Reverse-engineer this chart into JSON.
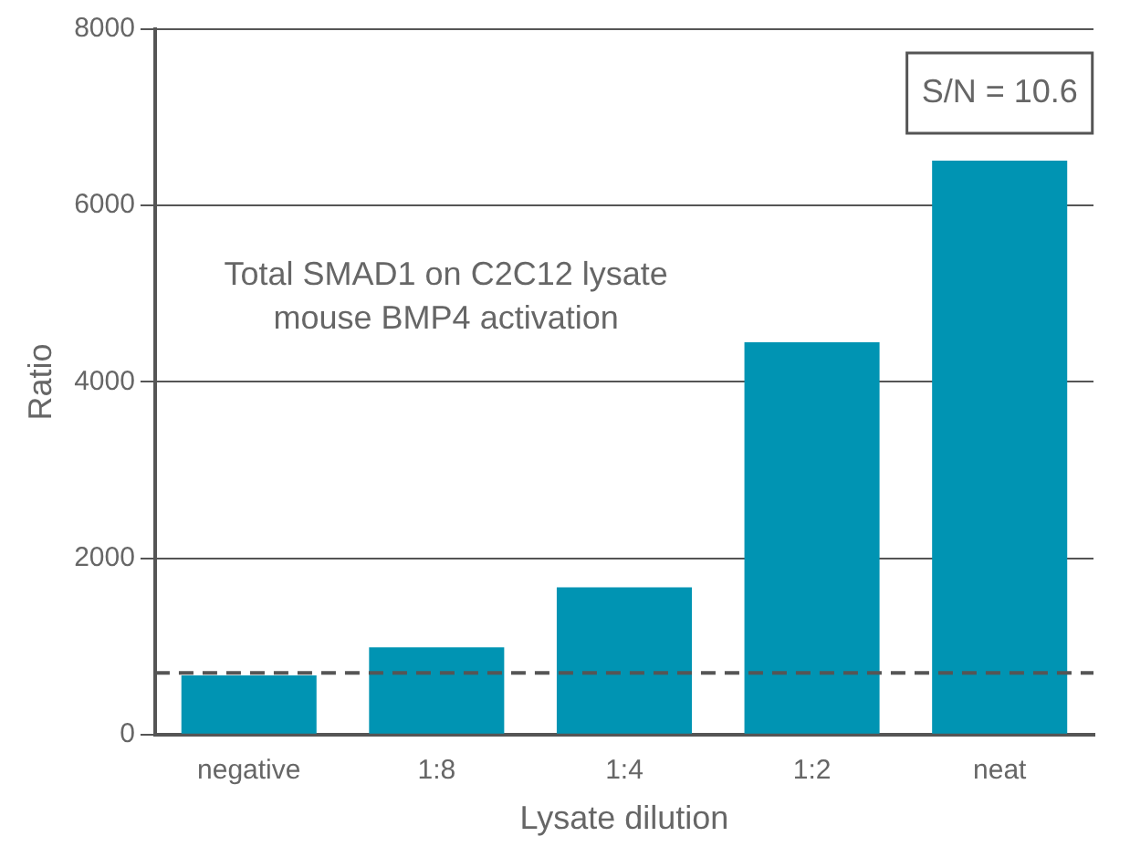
{
  "chart_data": {
    "type": "bar",
    "categories": [
      "negative",
      "1:8",
      "1:4",
      "1:2",
      "neat"
    ],
    "values": [
      670,
      990,
      1670,
      4450,
      6510
    ],
    "color": "#0094b3",
    "ylim": [
      0,
      8000
    ],
    "yticks": [
      0,
      2000,
      4000,
      6000,
      8000
    ],
    "grid": "y",
    "xlabel": "Lysate dilution",
    "ylabel": "Ratio",
    "ref_lines": [
      {
        "axis": "y",
        "value": 700,
        "color": "#555555",
        "line_style": "dashed"
      }
    ],
    "annotations": [
      "Total SMAD1 on C2C12 lysate\nmouse BMP4 activation",
      "S/N = 10.6"
    ]
  }
}
